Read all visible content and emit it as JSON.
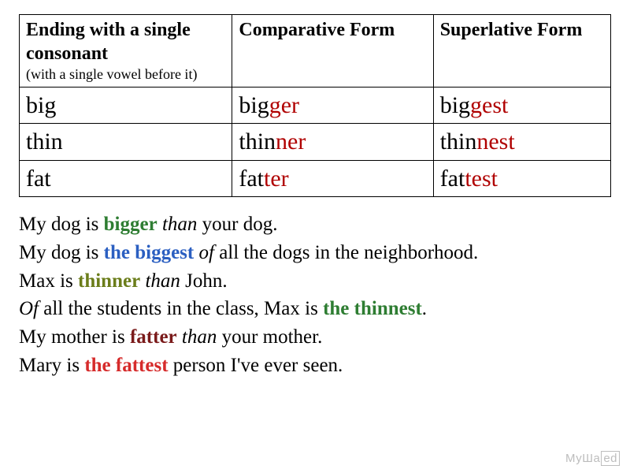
{
  "table": {
    "headers": {
      "col1_main": "Ending with a single consonant",
      "col1_sub": "(with a single vowel before it)",
      "col2": "Comparative Form",
      "col3": "Superlative Form"
    },
    "rows": [
      {
        "base": "big",
        "comp_stem": "big",
        "comp_suffix": "ger",
        "sup_stem": "big",
        "sup_suffix": "gest"
      },
      {
        "base": "thin",
        "comp_stem": "thin",
        "comp_suffix": "ner",
        "sup_stem": "thin",
        "sup_suffix": "nest"
      },
      {
        "base": "fat",
        "comp_stem": "fat",
        "comp_suffix": "ter",
        "sup_stem": "fat",
        "sup_suffix": "test"
      }
    ],
    "border_color": "#000000",
    "highlight_color": "#b00000",
    "header_fontsize": 24,
    "sub_fontsize": 18,
    "data_fontsize": 30
  },
  "sentences": {
    "fontsize": 25,
    "s1": {
      "pre": "My dog is ",
      "em": "bigger",
      "post": " than",
      "tail": " your dog.",
      "em_color": "#2e7d32"
    },
    "s2": {
      "pre": "My dog is ",
      "em": "the biggest",
      "post": " of",
      "tail": " all the dogs in the neighborhood.",
      "em_color": "#2b5fc1"
    },
    "s3": {
      "pre": "Max is ",
      "em": "thinner",
      "post": " than",
      "tail": " John.",
      "em_color": "#6b7d1a"
    },
    "s4": {
      "pre": "Of",
      "mid": " all the students in the class, Max is ",
      "em": "the thinnest",
      "tail": ".",
      "em_color": "#2e7d32"
    },
    "s5": {
      "pre": "My mother is ",
      "em": "fatter",
      "post": " than",
      "tail": " your mother.",
      "em_color": "#7a1a1a"
    },
    "s6": {
      "pre": "Mary is ",
      "em": "the fattest",
      "tail": " person I've ever seen.",
      "em_color": "#d62b2b"
    }
  },
  "watermark": {
    "text_left": "МуШа",
    "text_right": "ed"
  },
  "colors": {
    "background": "#ffffff",
    "text": "#000000",
    "green": "#2e7d32",
    "blue": "#2b5fc1",
    "olive": "#6b7d1a",
    "red_dark": "#7a1a1a",
    "red_bright": "#d62b2b",
    "table_highlight": "#b00000",
    "watermark": "#bdbdbd"
  }
}
